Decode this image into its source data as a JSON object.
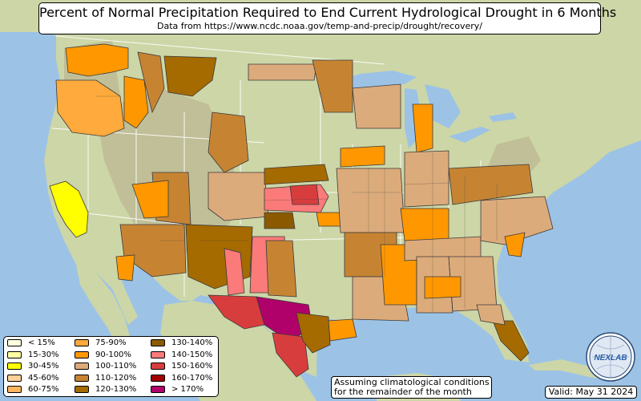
{
  "title": "Percent of Normal Precipitation Required to End Current Hydrological Drought in 6 Months",
  "subtitle": "Data from https://www.ncdc.noaa.gov/temp-and-precip/drought/recovery/",
  "legend": {
    "items": [
      {
        "label": "< 15%",
        "color": "#ffffe0"
      },
      {
        "label": "15-30%",
        "color": "#ffffa6"
      },
      {
        "label": "30-45%",
        "color": "#ffff00"
      },
      {
        "label": "45-60%",
        "color": "#fcd19a"
      },
      {
        "label": "60-75%",
        "color": "#fcb560"
      },
      {
        "label": "75-90%",
        "color": "#ffaa3c"
      },
      {
        "label": "90-100%",
        "color": "#ff9800"
      },
      {
        "label": "100-110%",
        "color": "#dcab7b"
      },
      {
        "label": "110-120%",
        "color": "#c68433"
      },
      {
        "label": "120-130%",
        "color": "#a56a00"
      },
      {
        "label": "130-140%",
        "color": "#8b5a00"
      },
      {
        "label": "140-150%",
        "color": "#fb7a7a"
      },
      {
        "label": "150-160%",
        "color": "#d83d3d"
      },
      {
        "label": "160-170%",
        "color": "#a00000"
      },
      {
        "label": "> 170%",
        "color": "#b0006a"
      }
    ]
  },
  "note": {
    "line1": "Assuming climatological conditions",
    "line2": "for the remainder of the month"
  },
  "valid": "Valid: May 31 2024",
  "logo": {
    "text": "NEXLAB",
    "icon": "nexlab-globe-logo"
  },
  "colors": {
    "ocean": "#9cc3e6",
    "land": "#cdd6a7",
    "mountain": "#b7ad8a",
    "county_border": "#3a3a3a"
  }
}
